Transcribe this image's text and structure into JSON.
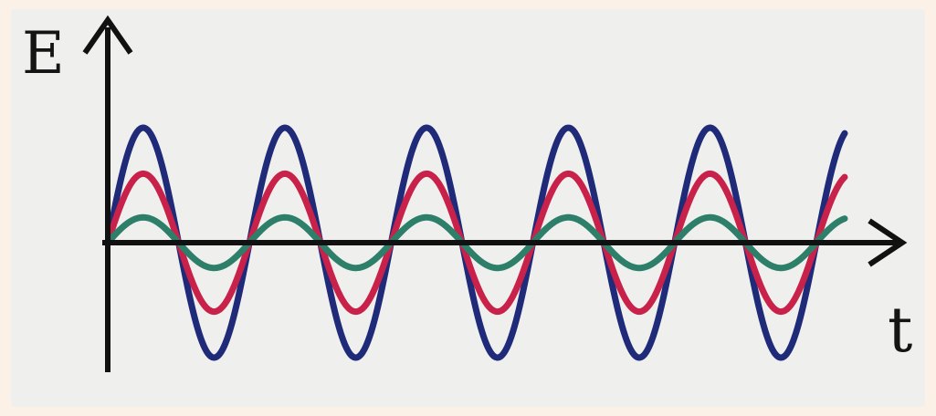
{
  "chart_data": {
    "type": "line",
    "xlabel": "t",
    "ylabel": "E",
    "grid": false,
    "legend": "none",
    "periods": 5.2,
    "series": [
      {
        "color": "#1f2a78",
        "amplitude": 1.0,
        "phase": 0.0
      },
      {
        "color": "#c8214a",
        "amplitude": 0.6,
        "phase": 0.0
      },
      {
        "color": "#2e7f6a",
        "amplitude": 0.22,
        "phase": 0.0
      }
    ]
  },
  "colors": {
    "background": "#fbf1e6",
    "plot_background": "#eff0ee",
    "axis": "#111111"
  }
}
